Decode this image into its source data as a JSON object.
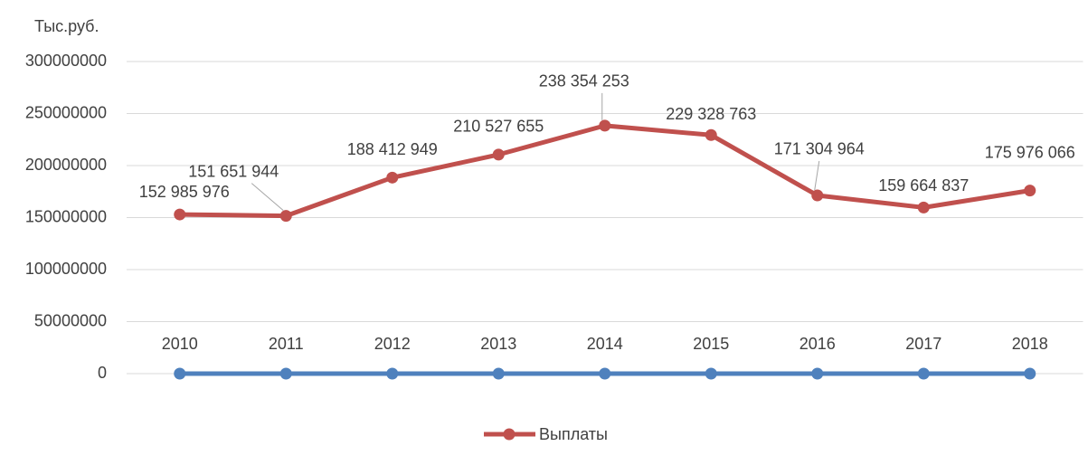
{
  "chart_data": {
    "type": "line",
    "y_unit_label": "Тыс.руб.",
    "categories": [
      "2010",
      "2011",
      "2012",
      "2013",
      "2014",
      "2015",
      "2016",
      "2017",
      "2018"
    ],
    "series": [
      {
        "color": "#4f81bd",
        "values": [
          0,
          0,
          0,
          0,
          0,
          0,
          0,
          0,
          0
        ]
      },
      {
        "name": "Выплаты",
        "color": "#c0504d",
        "values": [
          152985976,
          151651944,
          188412949,
          210527655,
          238354253,
          229328763,
          171304964,
          159664837,
          175976066
        ],
        "value_labels": [
          "152 985 976",
          "151 651 944",
          "188 412 949",
          "210 527 655",
          "238 354 253",
          "229 328 763",
          "171 304 964",
          "159 664 837",
          "175 976 066"
        ]
      }
    ],
    "ylim": [
      0,
      300000000
    ],
    "yticks": [
      0,
      50000000,
      100000000,
      150000000,
      200000000,
      250000000,
      300000000
    ],
    "grid": true,
    "legend": "bottom"
  }
}
